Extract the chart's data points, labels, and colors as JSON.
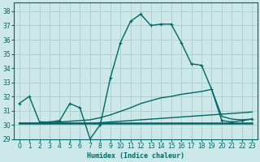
{
  "xlabel": "Humidex (Indice chaleur)",
  "background_color": "#cce8e8",
  "grid_color": "#aacccc",
  "line_color": "#006666",
  "xlim": [
    -0.5,
    23.5
  ],
  "ylim": [
    29,
    38.6
  ],
  "yticks": [
    29,
    30,
    31,
    32,
    33,
    34,
    35,
    36,
    37,
    38
  ],
  "xticks": [
    0,
    1,
    2,
    3,
    4,
    5,
    6,
    7,
    8,
    9,
    10,
    11,
    12,
    13,
    14,
    15,
    16,
    17,
    18,
    19,
    20,
    21,
    22,
    23
  ],
  "series": [
    {
      "x": [
        0,
        1,
        2,
        3,
        4,
        5,
        6,
        7,
        8,
        9,
        10,
        11,
        12,
        13,
        14,
        15,
        16,
        17,
        18,
        19,
        20,
        21,
        22,
        23
      ],
      "y": [
        31.5,
        32.0,
        30.2,
        30.2,
        30.3,
        31.5,
        31.2,
        29.0,
        30.0,
        33.3,
        35.8,
        37.3,
        37.8,
        37.0,
        37.1,
        37.1,
        35.8,
        34.3,
        34.2,
        32.5,
        30.3,
        30.2,
        30.3,
        30.4
      ],
      "marker": "+",
      "lw": 1.0,
      "ms": 3.5
    },
    {
      "x": [
        0,
        1,
        2,
        3,
        4,
        5,
        6,
        7,
        8,
        9,
        10,
        11,
        12,
        13,
        14,
        15,
        16,
        17,
        18,
        19,
        20,
        21,
        22,
        23
      ],
      "y": [
        30.1,
        30.1,
        30.1,
        30.1,
        30.1,
        30.1,
        30.1,
        30.1,
        30.1,
        30.1,
        30.1,
        30.1,
        30.1,
        30.1,
        30.1,
        30.1,
        30.1,
        30.1,
        30.1,
        30.1,
        30.1,
        30.1,
        30.1,
        30.1
      ],
      "marker": null,
      "lw": 1.8,
      "ms": 0
    },
    {
      "x": [
        0,
        1,
        2,
        3,
        4,
        5,
        6,
        7,
        8,
        9,
        10,
        11,
        12,
        13,
        14,
        15,
        16,
        17,
        18,
        19,
        20,
        21,
        22,
        23
      ],
      "y": [
        30.1,
        30.1,
        30.1,
        30.15,
        30.2,
        30.25,
        30.3,
        30.35,
        30.5,
        30.7,
        30.95,
        31.2,
        31.5,
        31.7,
        31.9,
        32.0,
        32.15,
        32.25,
        32.35,
        32.5,
        30.6,
        30.4,
        30.35,
        30.4
      ],
      "marker": null,
      "lw": 1.0,
      "ms": 0
    },
    {
      "x": [
        0,
        2,
        3,
        4,
        5,
        6,
        7,
        8,
        9,
        10,
        11,
        12,
        13,
        14,
        15,
        16,
        17,
        18,
        19,
        20,
        21,
        22,
        23
      ],
      "y": [
        30.1,
        30.1,
        30.1,
        30.1,
        30.1,
        30.1,
        30.1,
        30.15,
        30.2,
        30.25,
        30.3,
        30.35,
        30.4,
        30.45,
        30.5,
        30.55,
        30.6,
        30.65,
        30.7,
        30.75,
        30.8,
        30.85,
        30.9
      ],
      "marker": null,
      "lw": 1.0,
      "ms": 0
    }
  ]
}
